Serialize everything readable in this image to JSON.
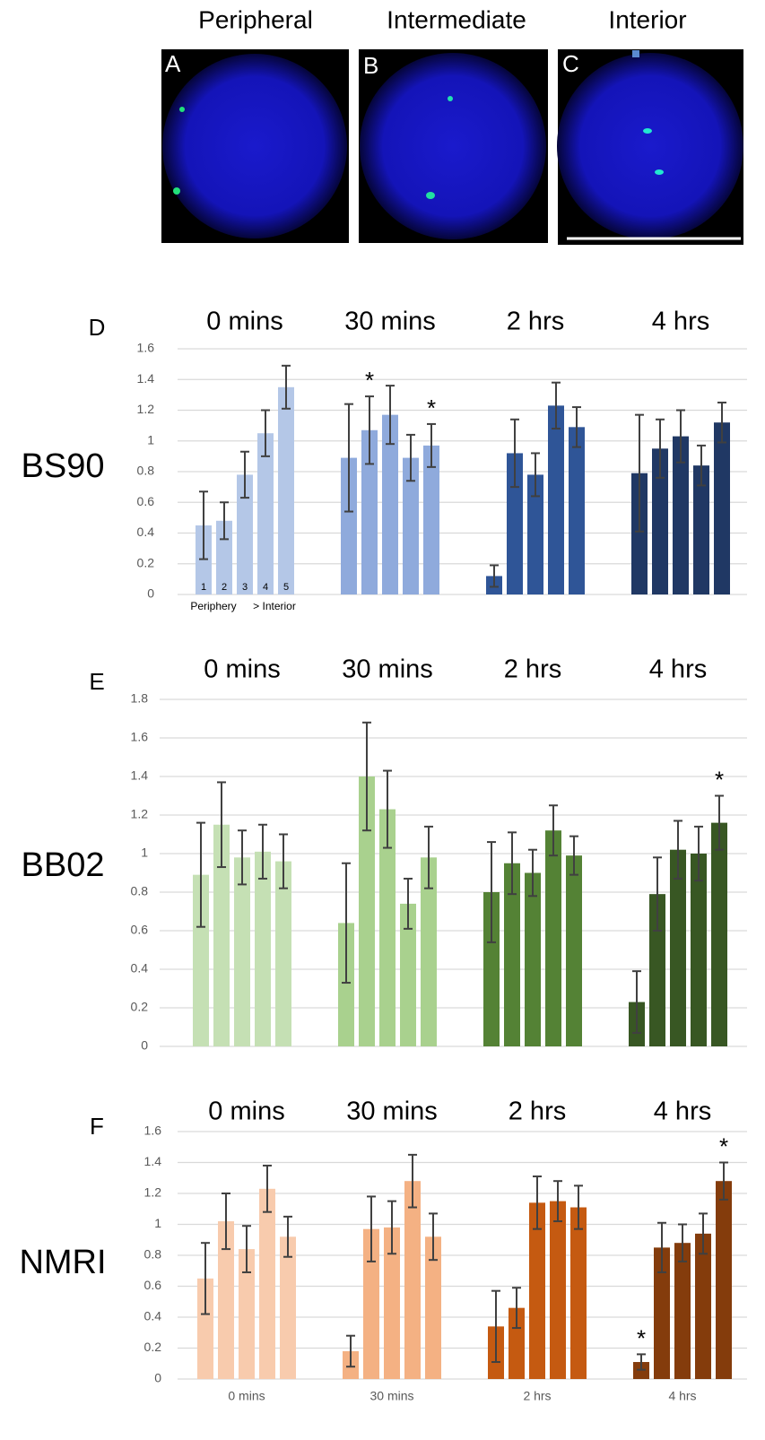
{
  "images": {
    "panels": [
      {
        "title": "Peripheral",
        "letter": "A"
      },
      {
        "title": "Intermediate",
        "letter": "B"
      },
      {
        "title": "Interior",
        "letter": "C"
      }
    ]
  },
  "chart_data": [
    {
      "type": "bar",
      "panel": "D",
      "row_label": "BS90",
      "ylim": [
        0,
        1.6
      ],
      "yticks": [
        0,
        0.2,
        0.4,
        0.6,
        0.8,
        1,
        1.2,
        1.4,
        1.6
      ],
      "grid": true,
      "axis_notes": [
        "Periphery",
        "> Interior"
      ],
      "groups": [
        {
          "label": "0 mins",
          "color": "#b4c7e7",
          "values": [
            0.45,
            0.48,
            0.78,
            1.05,
            1.35
          ],
          "errors": [
            0.22,
            0.12,
            0.15,
            0.15,
            0.14
          ],
          "bar_labels": [
            "1",
            "2",
            "3",
            "4",
            "5"
          ]
        },
        {
          "label": "30 mins",
          "color": "#8faadc",
          "values": [
            0.89,
            1.07,
            1.17,
            0.89,
            0.97
          ],
          "errors": [
            0.35,
            0.22,
            0.19,
            0.15,
            0.14
          ],
          "significance": [
            null,
            "*",
            null,
            null,
            "*"
          ]
        },
        {
          "label": "2 hrs",
          "color": "#2f5597",
          "values": [
            0.12,
            0.92,
            0.78,
            1.23,
            1.09
          ],
          "errors": [
            0.07,
            0.22,
            0.14,
            0.15,
            0.13
          ]
        },
        {
          "label": "4 hrs",
          "color": "#203864",
          "values": [
            0.79,
            0.95,
            1.03,
            0.84,
            1.12
          ],
          "errors": [
            0.38,
            0.19,
            0.17,
            0.13,
            0.13
          ]
        }
      ]
    },
    {
      "type": "bar",
      "panel": "E",
      "row_label": "BB02",
      "ylim": [
        0,
        1.8
      ],
      "yticks": [
        0,
        0.2,
        0.4,
        0.6,
        0.8,
        1,
        1.2,
        1.4,
        1.6,
        1.8
      ],
      "grid": true,
      "groups": [
        {
          "label": "0 mins",
          "color": "#c5e0b4",
          "values": [
            0.89,
            1.15,
            0.98,
            1.01,
            0.96
          ],
          "errors": [
            0.27,
            0.22,
            0.14,
            0.14,
            0.14
          ]
        },
        {
          "label": "30 mins",
          "color": "#a9d18e",
          "values": [
            0.64,
            1.4,
            1.23,
            0.74,
            0.98
          ],
          "errors": [
            0.31,
            0.28,
            0.2,
            0.13,
            0.16
          ]
        },
        {
          "label": "2 hrs",
          "color": "#548235",
          "values": [
            0.8,
            0.95,
            0.9,
            1.12,
            0.99
          ],
          "errors": [
            0.26,
            0.16,
            0.12,
            0.13,
            0.1
          ]
        },
        {
          "label": "4 hrs",
          "color": "#385723",
          "values": [
            0.23,
            0.79,
            1.02,
            1.0,
            1.16
          ],
          "errors": [
            0.16,
            0.19,
            0.15,
            0.14,
            0.14
          ],
          "significance": [
            null,
            null,
            null,
            null,
            "*"
          ]
        }
      ]
    },
    {
      "type": "bar",
      "panel": "F",
      "row_label": "NMRI",
      "ylim": [
        0,
        1.6
      ],
      "yticks": [
        0,
        0.2,
        0.4,
        0.6,
        0.8,
        1,
        1.2,
        1.4,
        1.6
      ],
      "grid": true,
      "bottom_labels": true,
      "groups": [
        {
          "label": "0 mins",
          "color": "#f8cbad",
          "values": [
            0.65,
            1.02,
            0.84,
            1.23,
            0.92
          ],
          "errors": [
            0.23,
            0.18,
            0.15,
            0.15,
            0.13
          ]
        },
        {
          "label": "30 mins",
          "color": "#f4b183",
          "values": [
            0.18,
            0.97,
            0.98,
            1.28,
            0.92
          ],
          "errors": [
            0.1,
            0.21,
            0.17,
            0.17,
            0.15
          ]
        },
        {
          "label": "2 hrs",
          "color": "#c55a11",
          "values": [
            0.34,
            0.46,
            1.14,
            1.15,
            1.11
          ],
          "errors": [
            0.23,
            0.13,
            0.17,
            0.13,
            0.14
          ]
        },
        {
          "label": "4 hrs",
          "color": "#843c0c",
          "values": [
            0.11,
            0.85,
            0.88,
            0.94,
            1.28
          ],
          "errors": [
            0.05,
            0.16,
            0.12,
            0.13,
            0.12
          ],
          "significance": [
            "*",
            null,
            null,
            null,
            "*"
          ]
        }
      ]
    }
  ]
}
